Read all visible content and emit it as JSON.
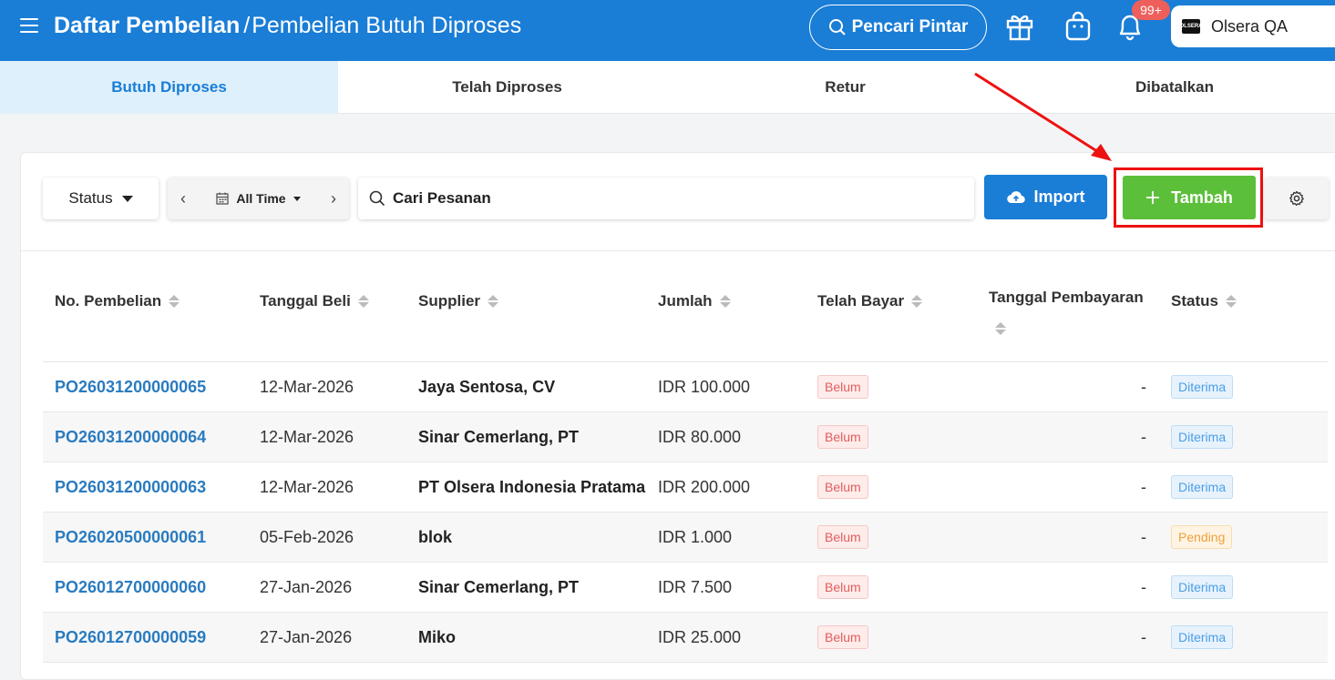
{
  "header": {
    "title_main": "Daftar Pembelian",
    "separator": "/",
    "title_sub": "Pembelian Butuh Diproses",
    "smart_search_label": "Pencari Pintar",
    "notification_count": "99+",
    "store_name": "Olsera QA",
    "store_logo_text": "OLSERA",
    "icons": [
      "menu-icon",
      "search-icon",
      "gift-icon",
      "shopping-bag-icon",
      "bell-icon"
    ]
  },
  "tabs": [
    {
      "label": "Butuh Diproses",
      "active": true
    },
    {
      "label": "Telah Diproses",
      "active": false
    },
    {
      "label": "Retur",
      "active": false
    },
    {
      "label": "Dibatalkan",
      "active": false
    }
  ],
  "toolbar": {
    "status_label": "Status",
    "date_label": "All Time",
    "search_placeholder": "Cari Pesanan",
    "import_label": "Import",
    "add_label": "Tambah"
  },
  "table": {
    "columns": [
      "No. Pembelian",
      "Tanggal Beli",
      "Supplier",
      "Jumlah",
      "Telah Bayar",
      "Tanggal Pembayaran",
      "Status"
    ],
    "rows": [
      {
        "no": "PO26031200000065",
        "date": "12-Mar-2026",
        "supplier": "Jaya Sentosa, CV",
        "amount": "IDR 100.000",
        "paid": "Belum",
        "pay_date": "-",
        "status": "Diterima"
      },
      {
        "no": "PO26031200000064",
        "date": "12-Mar-2026",
        "supplier": "Sinar Cemerlang, PT",
        "amount": "IDR 80.000",
        "paid": "Belum",
        "pay_date": "-",
        "status": "Diterima"
      },
      {
        "no": "PO26031200000063",
        "date": "12-Mar-2026",
        "supplier": "PT Olsera Indonesia Pratama",
        "amount": "IDR 200.000",
        "paid": "Belum",
        "pay_date": "-",
        "status": "Diterima"
      },
      {
        "no": "PO26020500000061",
        "date": "05-Feb-2026",
        "supplier": "blok",
        "amount": "IDR 1.000",
        "paid": "Belum",
        "pay_date": "-",
        "status": "Pending"
      },
      {
        "no": "PO26012700000060",
        "date": "27-Jan-2026",
        "supplier": "Sinar Cemerlang, PT",
        "amount": "IDR 7.500",
        "paid": "Belum",
        "pay_date": "-",
        "status": "Diterima"
      },
      {
        "no": "PO26012700000059",
        "date": "27-Jan-2026",
        "supplier": "Miko",
        "amount": "IDR 25.000",
        "paid": "Belum",
        "pay_date": "-",
        "status": "Diterima"
      }
    ]
  },
  "colors": {
    "primary": "#1a7dd6",
    "add_button": "#5cbf3a",
    "highlight": "#ee1111",
    "badge": "#ee5f5b"
  }
}
